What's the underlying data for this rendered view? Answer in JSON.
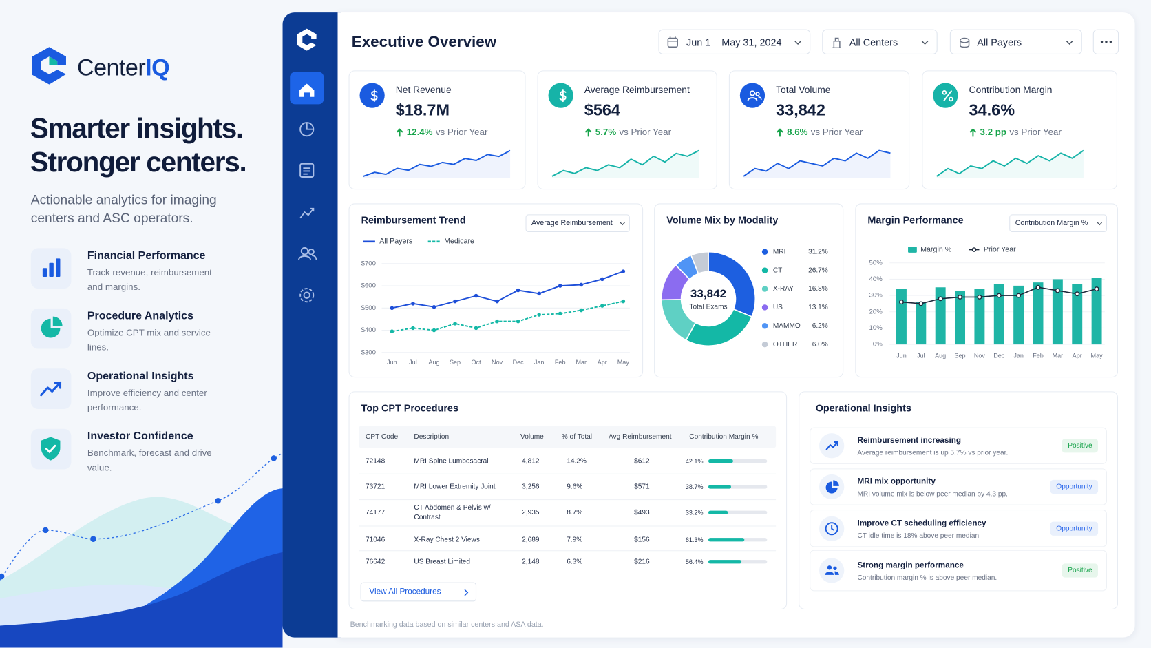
{
  "brand": {
    "name": "Center",
    "accent": "IQ"
  },
  "hero": {
    "headline": [
      "Smarter insights.",
      "Stronger centers."
    ],
    "tagline": "Actionable analytics for imaging centers and ASC operators."
  },
  "features": [
    {
      "title": "Financial Performance",
      "description": "Track revenue, reimbursement and margins."
    },
    {
      "title": "Procedure Analytics",
      "description": "Optimize CPT mix and service lines."
    },
    {
      "title": "Operational Insights",
      "description": "Improve efficiency and center performance."
    },
    {
      "title": "Investor Confidence",
      "description": "Benchmark, forecast and drive value."
    }
  ],
  "dashboard": {
    "title": "Executive Overview",
    "filters": [
      "Jun 1 – May 31, 2024",
      "All Centers",
      "All Payers"
    ]
  },
  "kpis": [
    {
      "label": "Net Revenue",
      "value": "$18.7M",
      "change": "12.4%",
      "comparison": "vs Prior Year",
      "sparkline": [
        10,
        12,
        11,
        14,
        13,
        16,
        15,
        17,
        16,
        19,
        18,
        21,
        20,
        23
      ]
    },
    {
      "label": "Average Reimbursement",
      "value": "$564",
      "change": "5.7%",
      "comparison": "vs Prior Year",
      "sparkline": [
        10,
        12,
        11,
        13,
        12,
        14,
        13,
        16,
        14,
        17,
        15,
        18,
        17,
        19
      ]
    },
    {
      "label": "Total Volume",
      "value": "33,842",
      "change": "8.6%",
      "comparison": "vs Prior Year",
      "sparkline": [
        10,
        13,
        12,
        15,
        13,
        16,
        15,
        14,
        17,
        16,
        19,
        17,
        20,
        19
      ]
    },
    {
      "label": "Contribution Margin",
      "value": "34.6%",
      "change": "3.2 pp",
      "comparison": "vs Prior Year",
      "sparkline": [
        10,
        13,
        11,
        14,
        13,
        16,
        14,
        17,
        15,
        18,
        16,
        19,
        17,
        20
      ]
    }
  ],
  "reimbursement_trend": {
    "type": "line",
    "title": "Reimbursement Trend",
    "selector": "Average Reimbursement",
    "categories": [
      "Jun",
      "Jul",
      "Aug",
      "Sep",
      "Oct",
      "Nov",
      "Dec",
      "Jan",
      "Feb",
      "Mar",
      "Apr",
      "May"
    ],
    "series": [
      {
        "name": "All Payers",
        "color": "#1d4ed8",
        "values": [
          500,
          520,
          505,
          530,
          555,
          530,
          580,
          565,
          600,
          605,
          630,
          665
        ]
      },
      {
        "name": "Medicare",
        "color": "#14b8a6",
        "style": "dashed",
        "values": [
          395,
          410,
          400,
          430,
          410,
          440,
          440,
          470,
          475,
          490,
          510,
          530
        ]
      }
    ],
    "ylim": [
      300,
      700
    ],
    "yticks": [
      {
        "value": 300,
        "label": "$300"
      },
      {
        "value": 400,
        "label": "$400"
      },
      {
        "value": 500,
        "label": "$500"
      },
      {
        "value": 600,
        "label": "$600"
      },
      {
        "value": 700,
        "label": "$700"
      }
    ],
    "grid": true
  },
  "volume_mix": {
    "type": "pie",
    "title": "Volume Mix by Modality",
    "categories": [
      "MRI",
      "CT",
      "X-RAY",
      "US",
      "MAMMO",
      "OTHER"
    ],
    "values": [
      31.2,
      26.7,
      16.8,
      13.1,
      6.2,
      6.0
    ],
    "value_labels": [
      "31.2%",
      "26.7%",
      "16.8%",
      "13.1%",
      "6.2%",
      "6.0%"
    ],
    "colors": [
      "#1d5fe0",
      "#14b8a6",
      "#5fd0c4",
      "#8b6cf0",
      "#4f94f5",
      "#c4cbd6"
    ],
    "center_value": "33,842",
    "center_label": "Total Exams"
  },
  "margin_performance": {
    "type": "bar",
    "title": "Margin Performance",
    "selector": "Contribution Margin %",
    "categories": [
      "Jun",
      "Jul",
      "Aug",
      "Sep",
      "Nov",
      "Dec",
      "Jan",
      "Feb",
      "Mar",
      "Apr",
      "May"
    ],
    "series": [
      {
        "name": "Margin %",
        "type": "bar",
        "color": "#1fb5a6",
        "values": [
          34,
          26,
          35,
          33,
          34,
          37,
          36,
          38,
          40,
          37,
          41
        ]
      },
      {
        "name": "Prior Year",
        "type": "line",
        "color": "#1e293b",
        "values": [
          26,
          25,
          28,
          29,
          29,
          30,
          30,
          35,
          33,
          31,
          34
        ]
      }
    ],
    "ylim": [
      0,
      50
    ],
    "yticks": [
      {
        "value": 0,
        "label": "0%"
      },
      {
        "value": 10,
        "label": "10%"
      },
      {
        "value": 20,
        "label": "20%"
      },
      {
        "value": 30,
        "label": "30%"
      },
      {
        "value": 40,
        "label": "40%"
      },
      {
        "value": 50,
        "label": "50%"
      }
    ],
    "grid": true
  },
  "procedures": {
    "title": "Top CPT Procedures",
    "columns": [
      "CPT Code",
      "Description",
      "Volume",
      "% of Total",
      "Avg Reimbursement",
      "Contribution Margin %"
    ],
    "rows": [
      [
        "72148",
        "MRI Spine Lumbosacral",
        "4,812",
        "14.2%",
        "$612",
        "42.1%"
      ],
      [
        "73721",
        "MRI Lower Extremity Joint",
        "3,256",
        "9.6%",
        "$571",
        "38.7%"
      ],
      [
        "74177",
        "CT Abdomen & Pelvis w/ Contrast",
        "2,935",
        "8.7%",
        "$493",
        "33.2%"
      ],
      [
        "71046",
        "X-Ray Chest 2 Views",
        "2,689",
        "7.9%",
        "$156",
        "61.3%"
      ],
      [
        "76642",
        "US Breast Limited",
        "2,148",
        "6.3%",
        "$216",
        "56.4%"
      ]
    ],
    "margins": [
      42.1,
      38.7,
      33.2,
      61.3,
      56.4
    ],
    "button": "View All Procedures"
  },
  "insights": {
    "title": "Operational Insights",
    "items": [
      {
        "title": "Reimbursement increasing",
        "description": "Average reimbursement is up 5.7% vs prior year.",
        "status": "Positive"
      },
      {
        "title": "MRI mix opportunity",
        "description": "MRI volume mix is below peer median by 4.3 pp.",
        "status": "Opportunity"
      },
      {
        "title": "Improve CT scheduling efficiency",
        "description": "CT idle time is 18% above peer median.",
        "status": "Opportunity"
      },
      {
        "title": "Strong margin performance",
        "description": "Contribution margin % is above peer median.",
        "status": "Positive"
      }
    ]
  },
  "footnote": "Benchmarking data based on similar centers and ASA data."
}
